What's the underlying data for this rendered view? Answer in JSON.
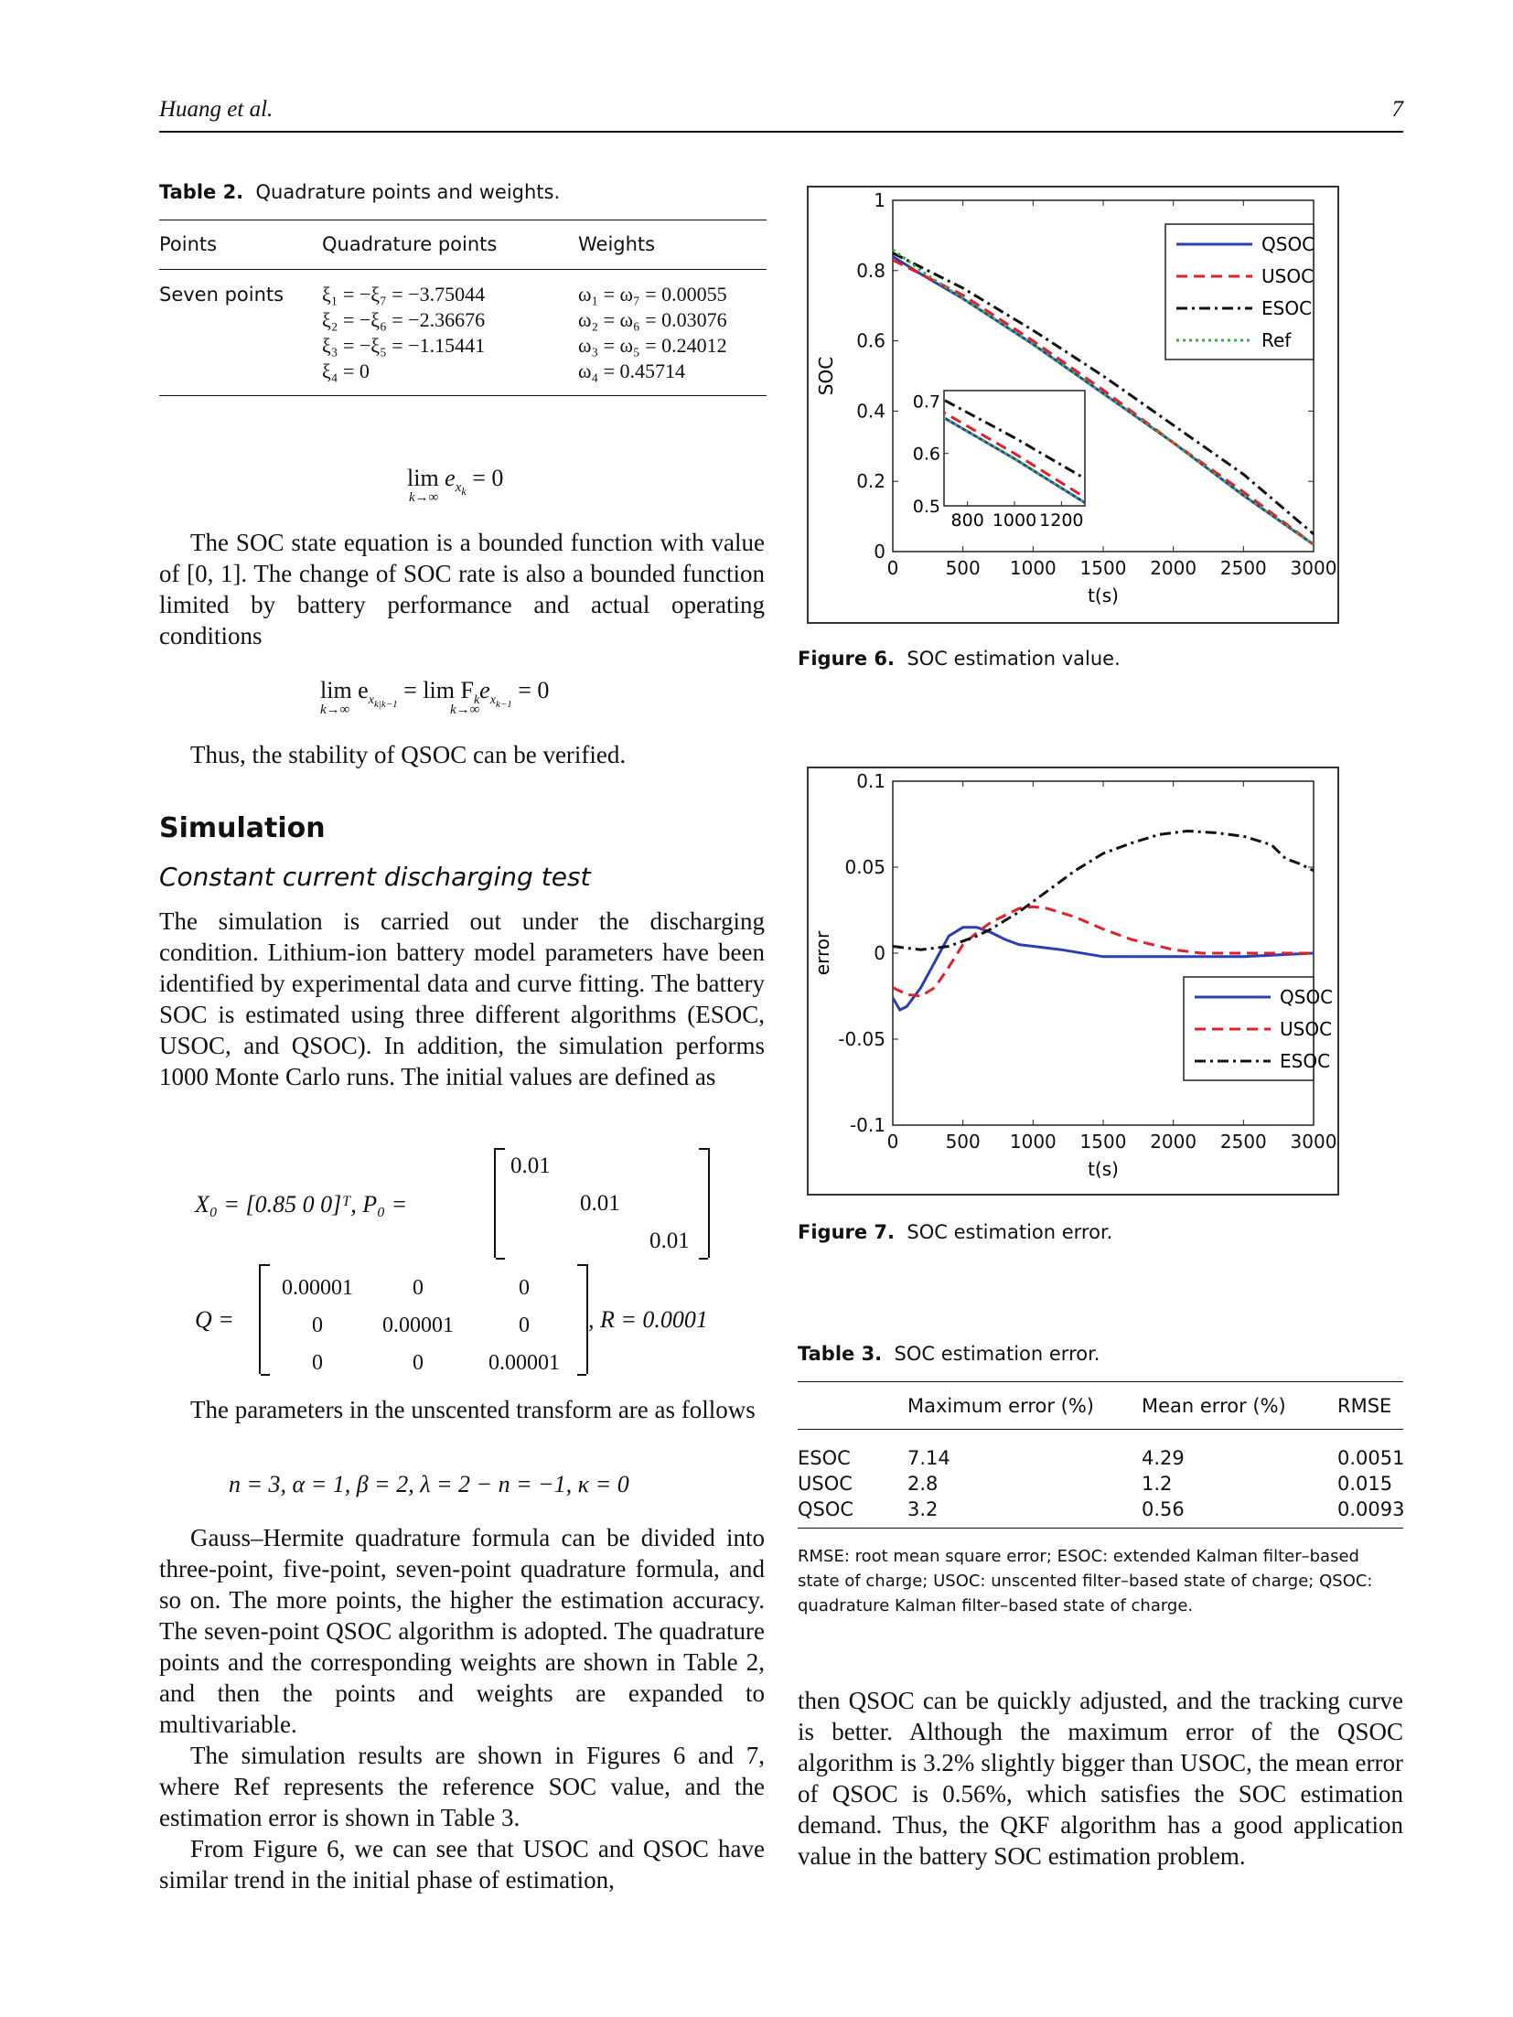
{
  "header": {
    "author": "Huang et al.",
    "page": "7"
  },
  "table2": {
    "label": "Table 2.",
    "caption": "Quadrature points and weights.",
    "headers": [
      "Points",
      "Quadrature points",
      "Weights"
    ],
    "row_label": "Seven points",
    "points": [
      "ξ₁ = −ξ₇ = −3.75044",
      "ξ₂ = −ξ₆ = −2.36676",
      "ξ₃ = −ξ₅ = −1.15441",
      "ξ₄ = 0"
    ],
    "weights": [
      "ω₁ = ω₇ = 0.00055",
      "ω₂ = ω₆ = 0.03076",
      "ω₃ = ω₅ = 0.24012",
      "ω₄ = 0.45714"
    ]
  },
  "left": {
    "eq1": "lim e_{x_k} = 0  (k→∞)",
    "eq1_lim": "lim",
    "eq1_sub": "k→∞",
    "eq1_body": "e",
    "eq1_rhs": "= 0",
    "para1": "The SOC state equation is a bounded function with value of [0, 1]. The change of SOC rate is also a bounded function limited by battery performance and actual operating conditions",
    "eq2_lhs": "lim e",
    "eq2_mid": "= lim F",
    "eq2_rhs": "= 0",
    "para2": "Thus, the stability of QSOC can be verified.",
    "h_sim": "Simulation",
    "h_cc": "Constant current discharging test",
    "para3": "The simulation is carried out under the discharging condition. Lithium-ion battery model parameters have been identified by experimental data and curve fitting. The battery SOC is estimated using three different algorithms (ESOC, USOC, and QSOC). In addition, the simulation performs 1000 Monte Carlo runs. The initial values are defined as",
    "x0": "X₀ = [0.85   0   0]ᵀ, P₀ =",
    "p0": [
      "0.01",
      "0.01",
      "0.01"
    ],
    "q_label": "Q =",
    "q_rows": [
      [
        "0.00001",
        "0",
        "0"
      ],
      [
        "0",
        "0.00001",
        "0"
      ],
      [
        "0",
        "0",
        "0.00001"
      ]
    ],
    "r": ", R = 0.0001",
    "para4": "The parameters in the unscented transform are as follows",
    "eq3": "n = 3, α = 1, β = 2, λ = 2 − n = −1, κ = 0",
    "para5": "Gauss–Hermite quadrature formula can be divided into three-point, five-point, seven-point quadrature formula, and so on. The more points, the higher the estimation accuracy. The seven-point QSOC algorithm is adopted. The quadrature points and the corresponding weights are shown in Table 2, and then the points and weights are expanded to multivariable.",
    "para6": "The simulation results are shown in Figures 6 and 7, where Ref represents the reference SOC value, and the estimation error is shown in Table 3.",
    "para7": "From Figure 6, we can see that USOC and QSOC have similar trend in the initial phase of estimation,"
  },
  "fig6": {
    "label": "Figure 6.",
    "caption": "SOC estimation value."
  },
  "fig7": {
    "label": "Figure 7.",
    "caption": "SOC estimation error."
  },
  "table3": {
    "label": "Table 3.",
    "caption": "SOC estimation error.",
    "headers": [
      "",
      "Maximum error (%)",
      "Mean error (%)",
      "RMSE"
    ],
    "rows": [
      [
        "ESOC",
        "7.14",
        "4.29",
        "0.0051"
      ],
      [
        "USOC",
        "2.8",
        "1.2",
        "0.015"
      ],
      [
        "QSOC",
        "3.2",
        "0.56",
        "0.0093"
      ]
    ],
    "note": "RMSE: root mean square error; ESOC: extended Kalman filter–based state of charge; USOC: unscented filter–based state of charge; QSOC: quadrature Kalman filter–based state of charge."
  },
  "right_para": "then QSOC can be quickly adjusted, and the tracking curve is better. Although the maximum error of the QSOC algorithm is 3.2% slightly bigger than USOC, the mean error of QSOC is 0.56%, which satisfies the SOC estimation demand. Thus, the QKF algorithm has a good application value in the battery SOC estimation problem.",
  "chart_data": [
    {
      "type": "line",
      "xlabel": "t(s)",
      "ylabel": "SOC",
      "xlim": [
        0,
        3000
      ],
      "ylim": [
        0,
        1
      ],
      "xticks": [
        "0",
        "500",
        "1000",
        "1500",
        "2000",
        "2500",
        "3000"
      ],
      "yticks": [
        "0",
        "0.2",
        "0.4",
        "0.6",
        "0.8",
        "1"
      ],
      "legend_position": "top-right",
      "series": [
        {
          "name": "QSOC",
          "color": "#2b3fb0",
          "dash": "solid",
          "x": [
            0,
            200,
            500,
            1000,
            1500,
            2000,
            2500,
            3000
          ],
          "y": [
            0.84,
            0.79,
            0.72,
            0.59,
            0.45,
            0.31,
            0.16,
            0.02
          ]
        },
        {
          "name": "USOC",
          "color": "#e0202a",
          "dash": "dashed",
          "x": [
            0,
            200,
            500,
            1000,
            1500,
            2000,
            2500,
            3000
          ],
          "y": [
            0.83,
            0.79,
            0.73,
            0.6,
            0.46,
            0.31,
            0.17,
            0.02
          ]
        },
        {
          "name": "ESOC",
          "color": "#111111",
          "dash": "dashdot",
          "x": [
            0,
            200,
            500,
            1000,
            1500,
            2000,
            2500,
            3000
          ],
          "y": [
            0.85,
            0.81,
            0.75,
            0.63,
            0.5,
            0.36,
            0.22,
            0.05
          ]
        },
        {
          "name": "Ref",
          "color": "#3cb03c",
          "dash": "dotted",
          "x": [
            0,
            200,
            500,
            1000,
            1500,
            2000,
            2500,
            3000
          ],
          "y": [
            0.86,
            0.8,
            0.72,
            0.59,
            0.45,
            0.31,
            0.16,
            0.02
          ]
        }
      ],
      "inset": {
        "xlim": [
          700,
          1300
        ],
        "ylim": [
          0.5,
          0.72
        ],
        "xticks": [
          "800",
          "1000",
          "1200"
        ],
        "yticks": [
          "0.5",
          "0.6",
          "0.7"
        ]
      }
    },
    {
      "type": "line",
      "xlabel": "t(s)",
      "ylabel": "error",
      "xlim": [
        0,
        3000
      ],
      "ylim": [
        -0.1,
        0.1
      ],
      "xticks": [
        "0",
        "500",
        "1000",
        "1500",
        "2000",
        "2500",
        "3000"
      ],
      "yticks": [
        "-0.1",
        "-0.05",
        "0",
        "0.05",
        "0.1"
      ],
      "legend_position": "right",
      "series": [
        {
          "name": "QSOC",
          "color": "#2b3fb0",
          "dash": "solid",
          "x": [
            0,
            50,
            100,
            200,
            300,
            400,
            500,
            600,
            700,
            800,
            900,
            1000,
            1200,
            1500,
            2000,
            2500,
            3000
          ],
          "y": [
            -0.026,
            -0.033,
            -0.031,
            -0.02,
            -0.005,
            0.01,
            0.015,
            0.015,
            0.012,
            0.008,
            0.005,
            0.004,
            0.002,
            -0.002,
            -0.002,
            -0.002,
            0.0
          ]
        },
        {
          "name": "USOC",
          "color": "#e0202a",
          "dash": "dashed",
          "x": [
            0,
            100,
            200,
            300,
            400,
            500,
            600,
            700,
            800,
            900,
            1000,
            1100,
            1300,
            1500,
            1700,
            2000,
            2200,
            2500,
            3000
          ],
          "y": [
            -0.02,
            -0.024,
            -0.025,
            -0.02,
            -0.008,
            0.005,
            0.012,
            0.018,
            0.022,
            0.026,
            0.027,
            0.026,
            0.021,
            0.014,
            0.008,
            0.002,
            0.0,
            0.0,
            0.0
          ]
        },
        {
          "name": "ESOC",
          "color": "#111111",
          "dash": "dashdot",
          "x": [
            0,
            100,
            200,
            300,
            400,
            500,
            600,
            700,
            900,
            1100,
            1300,
            1500,
            1700,
            1900,
            2100,
            2300,
            2500,
            2700,
            2800,
            2900,
            3000
          ],
          "y": [
            0.004,
            0.003,
            0.002,
            0.003,
            0.004,
            0.007,
            0.01,
            0.014,
            0.024,
            0.036,
            0.048,
            0.058,
            0.064,
            0.069,
            0.071,
            0.07,
            0.068,
            0.063,
            0.055,
            0.052,
            0.048
          ]
        }
      ]
    }
  ]
}
